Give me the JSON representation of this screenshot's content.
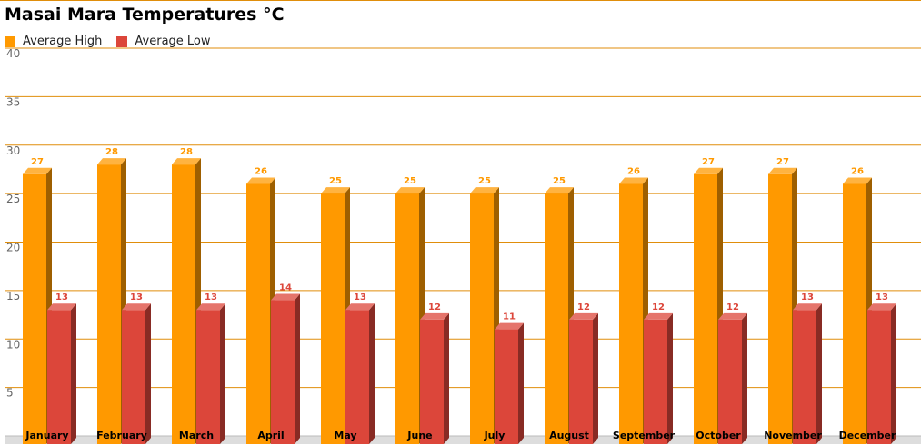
{
  "chart_data": {
    "type": "bar",
    "title": "Masai Mara Temperatures °C",
    "categories": [
      "January",
      "February",
      "March",
      "April",
      "May",
      "June",
      "July",
      "August",
      "September",
      "October",
      "November",
      "December"
    ],
    "series": [
      {
        "name": "Average High",
        "color": "#ff9900",
        "values": [
          27,
          28,
          28,
          26,
          25,
          25,
          25,
          25,
          26,
          27,
          27,
          26
        ]
      },
      {
        "name": "Average Low",
        "color": "#dc463a",
        "values": [
          13,
          13,
          13,
          14,
          13,
          12,
          11,
          12,
          12,
          12,
          13,
          13
        ]
      }
    ],
    "ylim": [
      0,
      40
    ],
    "yticks": [
      5,
      10,
      15,
      20,
      25,
      30,
      35,
      40
    ],
    "grid": true,
    "legend_position": "top-left",
    "style": "3d"
  }
}
